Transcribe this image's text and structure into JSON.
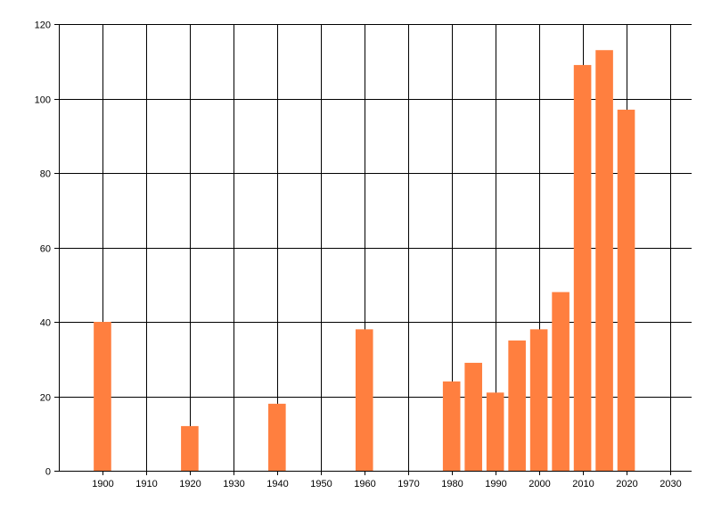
{
  "chart_data": {
    "type": "bar",
    "title": "",
    "xlabel": "",
    "ylabel": "",
    "x": [
      1900,
      1920,
      1940,
      1960,
      1980,
      1985,
      1990,
      1995,
      2000,
      2005,
      2010,
      2015,
      2020
    ],
    "values": [
      40,
      12,
      18,
      38,
      24,
      29,
      21,
      35,
      38,
      48,
      109,
      113,
      97
    ],
    "xlim": [
      1890,
      2035
    ],
    "ylim": [
      0,
      120
    ],
    "xticks": [
      1900,
      1910,
      1920,
      1930,
      1940,
      1950,
      1960,
      1970,
      1980,
      1990,
      2000,
      2010,
      2020,
      2030
    ],
    "yticks": [
      0,
      20,
      40,
      60,
      80,
      100,
      120
    ],
    "grid": true,
    "legend": "none",
    "bar_color": "#ff7f3f",
    "grid_color": "#000000"
  }
}
